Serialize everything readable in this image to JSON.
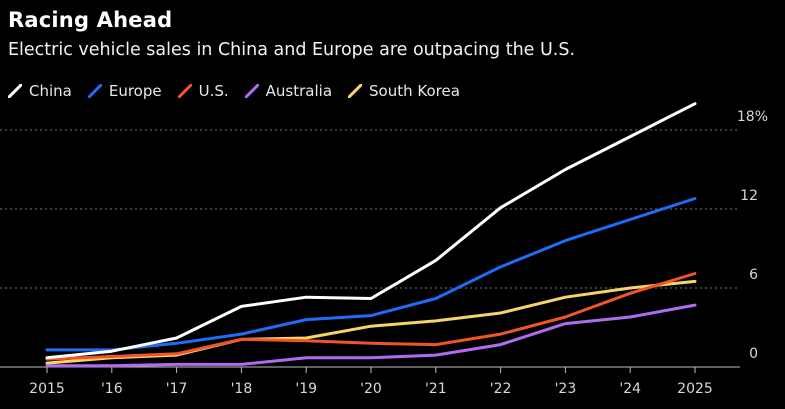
{
  "chart_data": {
    "type": "line",
    "title": "Racing Ahead",
    "subtitle": "Electric vehicle sales in China and Europe are outpacing the U.S.",
    "x": [
      "2015",
      "'16",
      "'17",
      "'18",
      "'19",
      "'20",
      "'21",
      "'22",
      "'23",
      "'24",
      "2025"
    ],
    "ylim": [
      0,
      18
    ],
    "yticks": [
      {
        "value": 0,
        "label": "0"
      },
      {
        "value": 6,
        "label": "6"
      },
      {
        "value": 12,
        "label": "12"
      },
      {
        "value": 18,
        "label": "18%"
      }
    ],
    "grid": true,
    "legend": "top-left",
    "series": [
      {
        "name": "China",
        "color": "#ffffff",
        "values": [
          0.7,
          1.2,
          2.2,
          4.6,
          5.3,
          5.2,
          8.1,
          12.1,
          15.0,
          17.5,
          20.0
        ]
      },
      {
        "name": "Europe",
        "color": "#1f6cf5",
        "values": [
          1.3,
          1.3,
          1.8,
          2.5,
          3.6,
          3.9,
          5.2,
          7.6,
          9.6,
          11.2,
          12.8
        ]
      },
      {
        "name": "U.S.",
        "color": "#f0542a",
        "values": [
          0.6,
          0.8,
          1.0,
          2.1,
          2.0,
          1.8,
          1.7,
          2.5,
          3.8,
          5.6,
          7.1
        ]
      },
      {
        "name": "Australia",
        "color": "#b06cf0",
        "values": [
          0.1,
          0.1,
          0.2,
          0.2,
          0.7,
          0.7,
          0.9,
          1.7,
          3.3,
          3.8,
          4.7
        ]
      },
      {
        "name": "South Korea",
        "color": "#f7d36a",
        "values": [
          0.3,
          0.7,
          0.9,
          2.1,
          2.2,
          3.1,
          3.5,
          4.1,
          5.3,
          6.0,
          6.5
        ]
      }
    ]
  }
}
